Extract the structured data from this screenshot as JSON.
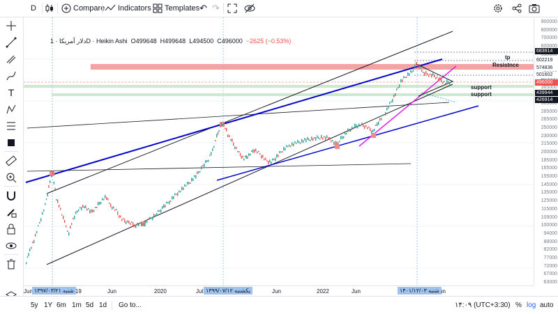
{
  "toolbar": {
    "symbol_short": "D",
    "compare_label": "Compare",
    "indicators_label": "Indicators",
    "templates_label": "Templates"
  },
  "legend": {
    "symbol": "دلار آمریکا · 1D · Heikin Ashi",
    "open": "O499648",
    "high": "H499648",
    "low": "L494500",
    "close": "C496000",
    "change": "−2625 (−0.53%)"
  },
  "annotations": {
    "tp": "tp",
    "resistance": "Resistnce",
    "support1": "support",
    "support2": "support"
  },
  "price_axis": {
    "ticks": [
      "900000",
      "800000",
      "700000",
      "600000",
      "550000",
      "500000",
      "455000",
      "405000",
      "365000",
      "335000",
      "305000",
      "285000",
      "265000",
      "250000",
      "230000",
      "215000",
      "200000",
      "185000",
      "165000",
      "155000",
      "145000",
      "135000",
      "125000",
      "115000",
      "109000",
      "100000",
      "94000",
      "88000",
      "82000",
      "77000",
      "72000",
      "67000",
      "63000"
    ],
    "labels": [
      {
        "text": "683914",
        "bg": "#131722",
        "fg": "#ffffff"
      },
      {
        "text": "602219",
        "bg": "#ffffff",
        "fg": "#131722"
      },
      {
        "text": "574836",
        "bg": "#ffffff",
        "fg": "#131722"
      },
      {
        "text": "501602",
        "bg": "#ffffff",
        "fg": "#131722"
      },
      {
        "text": "496000",
        "bg": "#ef5350",
        "fg": "#ffffff"
      },
      {
        "text": "439944",
        "bg": "#131722",
        "fg": "#ffffff"
      },
      {
        "text": "426914",
        "bg": "#131722",
        "fg": "#ffffff"
      }
    ]
  },
  "time_axis": {
    "ticks": [
      "Jun",
      "2019",
      "Jun",
      "2020",
      "Jul",
      "21",
      "Jun",
      "2022",
      "Jun",
      "Jun"
    ],
    "highlights": [
      "شنبه ۱۳۹۷/۰۳/۲۱",
      "یکشنبه ۱۳۹۹/۰۷/۱۲",
      "شنبه ۱۴۰۱/۱۲/۰۳"
    ]
  },
  "bottombar": {
    "ranges": [
      "5y",
      "1Y",
      "6m",
      "1m",
      "5d",
      "1d"
    ],
    "goto": "Go to...",
    "time": "۱۴:۰۹ (UTC+3:30)",
    "percent": "%",
    "log": "log",
    "auto": "auto"
  },
  "colors": {
    "up": "#26a69a",
    "down": "#ef5350",
    "trend_blue": "#0000cc",
    "trend_magenta": "#e020e0",
    "resistance_zone": "#f28b8b",
    "support_zone": "#c8e6c9",
    "accent": "#2962ff"
  }
}
